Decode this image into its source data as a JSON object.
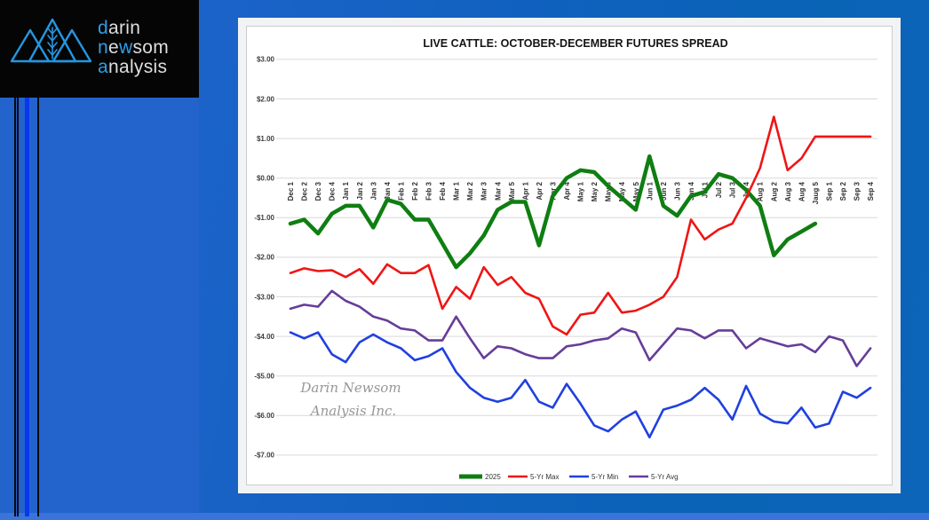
{
  "logo": {
    "words": [
      {
        "parts": [
          {
            "t": "d",
            "accent": true
          },
          {
            "t": "arin",
            "accent": false
          }
        ]
      },
      {
        "parts": [
          {
            "t": "n",
            "accent": true
          },
          {
            "t": "e",
            "accent": false
          },
          {
            "t": "w",
            "accent": true
          },
          {
            "t": "som",
            "accent": false
          }
        ]
      },
      {
        "parts": [
          {
            "t": "a",
            "accent": true
          },
          {
            "t": "nalysis",
            "accent": false
          }
        ]
      }
    ],
    "accent_color": "#2e9fe6",
    "mark_color": "#2496e0"
  },
  "watermark": {
    "line1": "Darin Newsom",
    "line2": "Analysis Inc.",
    "color": "#97979a"
  },
  "chart_data": {
    "type": "line",
    "title": "LIVE CATTLE: OCTOBER-DECEMBER FUTURES SPREAD",
    "grid": true,
    "legend_position": "bottom",
    "ylim": [
      -7,
      3
    ],
    "ytick_labels": [
      "$3.00",
      "$2.00",
      "$1.00",
      "$0.00",
      "-$1.00",
      "-$2.00",
      "-$3.00",
      "-$4.00",
      "-$5.00",
      "-$6.00",
      "-$7.00"
    ],
    "yticks": [
      3,
      2,
      1,
      0,
      -1,
      -2,
      -3,
      -4,
      -5,
      -6,
      -7
    ],
    "categories": [
      "Dec 1",
      "Dec 2",
      "Dec 3",
      "Dec 4",
      "Jan 1",
      "Jan 2",
      "Jan 3",
      "Jan 4",
      "Feb 1",
      "Feb 2",
      "Feb 3",
      "Feb 4",
      "Mar 1",
      "Mar 2",
      "Mar 3",
      "Mar 4",
      "Mar 5",
      "Apr 1",
      "Apr 2",
      "Apr 3",
      "Apr 4",
      "May 1",
      "May 2",
      "May 3",
      "May 4",
      "May 5",
      "Jun 1",
      "Jun 2",
      "Jun 3",
      "Jun 4",
      "Jul 1",
      "Jul 2",
      "Jul 3",
      "Jul 4",
      "Aug 1",
      "Aug 2",
      "Aug 3",
      "Aug 4",
      "Jaug 5",
      "Sep 1",
      "Sep 2",
      "Sep 3",
      "Sep 4"
    ],
    "series": [
      {
        "name": "2025",
        "color": "#0f7e12",
        "width": 4.5,
        "values": [
          -1.15,
          -1.05,
          -1.4,
          -0.9,
          -0.7,
          -0.7,
          -1.25,
          -0.55,
          -0.65,
          -1.05,
          -1.05,
          -1.65,
          -2.25,
          -1.9,
          -1.45,
          -0.8,
          -0.6,
          -0.6,
          -1.7,
          -0.45,
          0.0,
          0.2,
          0.15,
          -0.2,
          -0.5,
          -0.8,
          0.55,
          -0.7,
          -0.95,
          -0.45,
          -0.35,
          0.1,
          0.0,
          -0.3,
          -0.7,
          -1.95,
          -1.55,
          -1.35,
          -1.15,
          null,
          null,
          null,
          null
        ]
      },
      {
        "name": "5-Yr Max",
        "color": "#ef1515",
        "width": 2.6,
        "values": [
          -2.4,
          -2.28,
          -2.35,
          -2.33,
          -2.5,
          -2.3,
          -2.67,
          -2.18,
          -2.4,
          -2.4,
          -2.2,
          -3.3,
          -2.75,
          -3.05,
          -2.25,
          -2.7,
          -2.5,
          -2.9,
          -3.05,
          -3.75,
          -3.95,
          -3.45,
          -3.4,
          -2.9,
          -3.4,
          -3.35,
          -3.2,
          -3.0,
          -2.5,
          -1.05,
          -1.55,
          -1.3,
          -1.15,
          -0.5,
          0.25,
          1.55,
          0.2,
          0.5,
          1.05,
          1.05,
          1.05,
          1.05,
          1.05
        ]
      },
      {
        "name": "5-Yr Min",
        "color": "#2040e0",
        "width": 2.6,
        "values": [
          -3.9,
          -4.05,
          -3.9,
          -4.45,
          -4.65,
          -4.15,
          -3.95,
          -4.15,
          -4.3,
          -4.6,
          -4.5,
          -4.3,
          -4.9,
          -5.3,
          -5.55,
          -5.65,
          -5.55,
          -5.1,
          -5.65,
          -5.8,
          -5.2,
          -5.7,
          -6.25,
          -6.4,
          -6.1,
          -5.9,
          -6.55,
          -5.85,
          -5.75,
          -5.6,
          -5.3,
          -5.6,
          -6.1,
          -5.25,
          -5.95,
          -6.15,
          -6.2,
          -5.8,
          -6.3,
          -6.2,
          -5.4,
          -5.55,
          -5.3
        ]
      },
      {
        "name": "5-Yr Avg",
        "color": "#663d99",
        "width": 2.6,
        "values": [
          -3.3,
          -3.2,
          -3.25,
          -2.85,
          -3.1,
          -3.25,
          -3.5,
          -3.6,
          -3.8,
          -3.85,
          -4.1,
          -4.1,
          -3.5,
          -4.05,
          -4.55,
          -4.25,
          -4.3,
          -4.45,
          -4.55,
          -4.55,
          -4.25,
          -4.2,
          -4.1,
          -4.05,
          -3.8,
          -3.9,
          -4.6,
          -4.2,
          -3.8,
          -3.85,
          -4.05,
          -3.85,
          -3.85,
          -4.3,
          -4.05,
          -4.15,
          -4.25,
          -4.2,
          -4.4,
          -4.0,
          -4.1,
          -4.75,
          -4.3
        ]
      }
    ]
  }
}
